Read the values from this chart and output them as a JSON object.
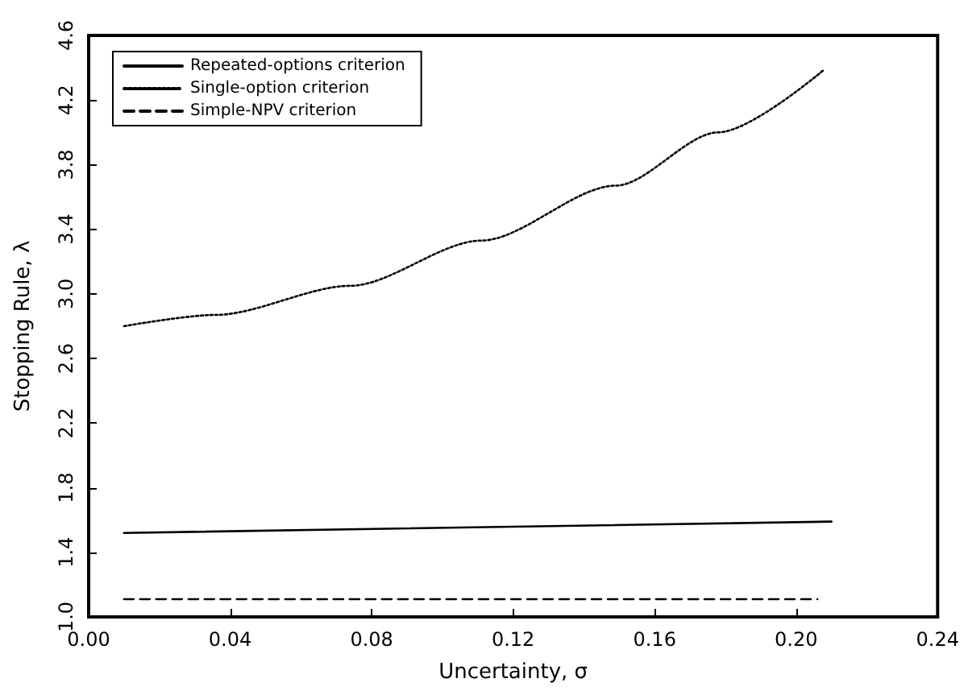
{
  "chart_data": {
    "type": "line",
    "xlabel": "Uncertainty, σ",
    "ylabel": "Stopping Rule, λ",
    "xlim": [
      0,
      0.24
    ],
    "xticks": [
      {
        "value": 0,
        "label": "0.00"
      },
      {
        "value": 0.04,
        "label": "0.04"
      },
      {
        "value": 0.08,
        "label": "0.08"
      },
      {
        "value": 0.12,
        "label": "0.12"
      },
      {
        "value": 0.16,
        "label": "0.16"
      },
      {
        "value": 0.2,
        "label": "0.20"
      },
      {
        "value": 0.24,
        "label": "0.24"
      }
    ],
    "ylim": [
      1.0,
      4.6
    ],
    "yticks": [
      {
        "value": 1,
        "label": "1.0"
      },
      1.4,
      1.8,
      2.2,
      2.6,
      {
        "value": 3,
        "label": "3.0"
      },
      3.4,
      3.8,
      4.2,
      4.6
    ],
    "legend": "top left",
    "grid": false,
    "marker": "none",
    "series": [
      {
        "name": "Repeated-options criterion",
        "color": "#000000",
        "line_style": "solid",
        "x": [
          0.01,
          0.21
        ],
        "values": [
          1.52,
          1.59
        ]
      },
      {
        "name": "Single-option criterion",
        "color": "#000000",
        "line_style": "dotted",
        "x": [
          0.01,
          0.036,
          0.074,
          0.111,
          0.149,
          0.178,
          0.208
        ],
        "values": [
          2.8,
          2.87,
          3.05,
          3.33,
          3.67,
          4.0,
          4.39
        ]
      },
      {
        "name": "Simple-NPV criterion",
        "color": "#000000",
        "line_style": "dashed",
        "x": [
          0.01,
          0.206
        ],
        "values": [
          1.11,
          1.11
        ]
      }
    ]
  }
}
